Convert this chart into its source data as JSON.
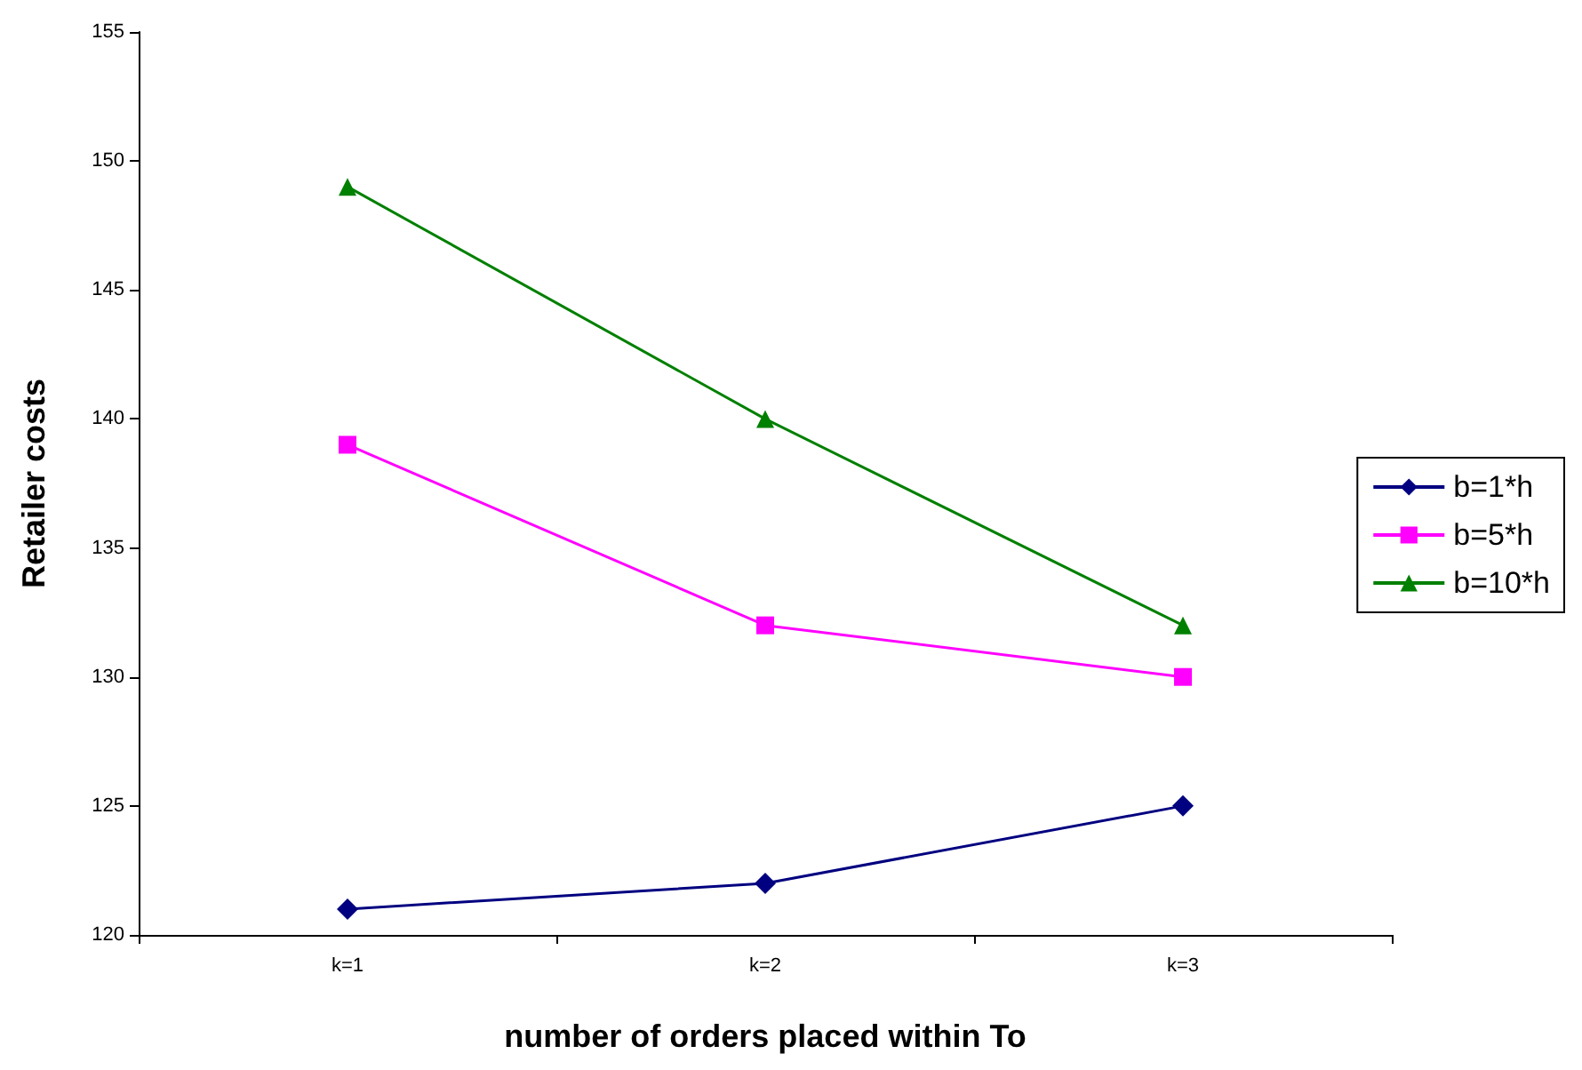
{
  "chart_data": {
    "type": "line",
    "xlabel": "number of orders placed within To",
    "ylabel": "Retailer costs",
    "categories": [
      "k=1",
      "k=2",
      "k=3"
    ],
    "series": [
      {
        "name": "b=1*h",
        "color": "#000080",
        "marker": "diamond",
        "values": [
          121,
          122,
          125
        ]
      },
      {
        "name": "b=5*h",
        "color": "#ff00ff",
        "marker": "square",
        "values": [
          139,
          132,
          130
        ]
      },
      {
        "name": "b=10*h",
        "color": "#008000",
        "marker": "triangle",
        "values": [
          149,
          140,
          132
        ]
      }
    ],
    "ylim": [
      120,
      155
    ],
    "yticks": [
      120,
      125,
      130,
      135,
      140,
      145,
      150,
      155
    ],
    "grid": false,
    "legend": "right"
  }
}
